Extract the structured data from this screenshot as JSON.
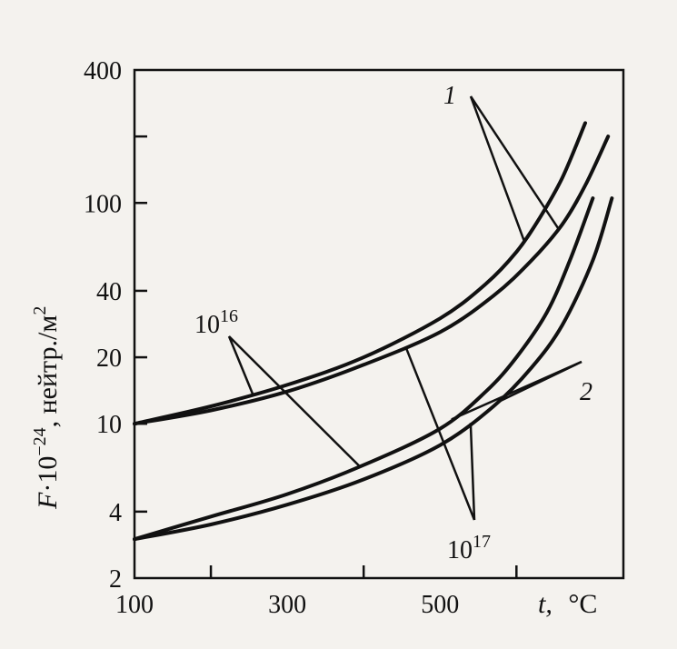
{
  "chart_data": {
    "type": "line",
    "xlabel_var": "t,",
    "xlabel_unit": "°C",
    "ylabel_var": "F",
    "ylabel_base": "·10",
    "ylabel_exp": "−24",
    "ylabel_unit": ", нейтр./м",
    "ylabel_unit_exp": "2",
    "x_ticks": [
      100,
      300,
      500
    ],
    "x_tick_labels": [
      "100",
      "300",
      "500"
    ],
    "xlim": [
      100,
      740
    ],
    "y_scale": "log",
    "y_ticks": [
      2,
      4,
      10,
      20,
      40,
      100,
      400
    ],
    "y_tick_labels": [
      "2",
      "4",
      "10",
      "20",
      "40",
      "100",
      "400"
    ],
    "ylim": [
      2,
      400
    ],
    "grid": false,
    "series": [
      {
        "group": "1",
        "fluence_base": "10",
        "fluence_exp": "16",
        "x": [
          100,
          200,
          300,
          400,
          500,
          560,
          600,
          630,
          660,
          690
        ],
        "y": [
          10,
          12,
          15,
          20,
          30,
          43,
          60,
          85,
          130,
          230
        ]
      },
      {
        "group": "1",
        "fluence_base": "10",
        "fluence_exp": "17",
        "x": [
          100,
          200,
          300,
          400,
          500,
          570,
          620,
          660,
          690,
          720
        ],
        "y": [
          10,
          11.5,
          14,
          18.5,
          26,
          38,
          55,
          80,
          120,
          200
        ]
      },
      {
        "group": "2",
        "fluence_base": "10",
        "fluence_exp": "16",
        "x": [
          100,
          200,
          300,
          400,
          500,
          560,
          600,
          640,
          670,
          700
        ],
        "y": [
          3,
          3.8,
          4.8,
          6.5,
          9.5,
          14,
          20,
          32,
          55,
          105
        ]
      },
      {
        "group": "2",
        "fluence_base": "10",
        "fluence_exp": "17",
        "x": [
          100,
          200,
          300,
          400,
          500,
          570,
          620,
          660,
          700,
          725
        ],
        "y": [
          3,
          3.5,
          4.3,
          5.6,
          8,
          12,
          18,
          28,
          55,
          105
        ]
      }
    ],
    "curve_labels": [
      "1",
      "2"
    ],
    "fluence_labels": [
      {
        "base": "10",
        "exp": "16"
      },
      {
        "base": "10",
        "exp": "17"
      }
    ]
  }
}
